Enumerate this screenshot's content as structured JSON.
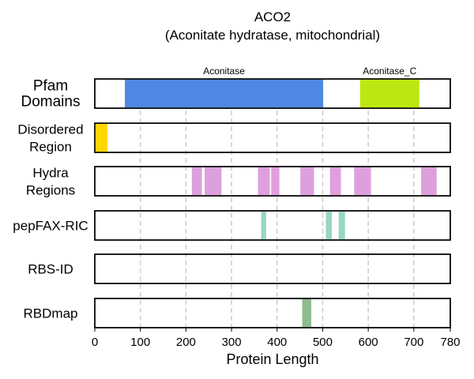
{
  "chart_data": {
    "type": "bar",
    "title": "ACO2",
    "subtitle": "(Aconitate hydratase, mitochondrial)",
    "xlabel": "Protein Length",
    "xlim": [
      0,
      780
    ],
    "xticks": [
      0,
      100,
      200,
      300,
      400,
      500,
      600,
      700,
      780
    ],
    "grid": "vertical dashed",
    "tracks": [
      {
        "label_lines": [
          "Pfam",
          "Domains"
        ],
        "segments": [
          {
            "start": 66,
            "end": 501,
            "color": "#4f88e3",
            "label": "Aconitase"
          },
          {
            "start": 582,
            "end": 712,
            "color": "#bde712",
            "label": "Aconitase_C"
          }
        ]
      },
      {
        "label_lines": [
          "Disordered",
          "Region"
        ],
        "segments": [
          {
            "start": 1,
            "end": 28,
            "color": "#ffd700"
          }
        ]
      },
      {
        "label_lines": [
          "Hydra",
          "Regions"
        ],
        "segments": [
          {
            "start": 213,
            "end": 235,
            "color": "#dda0dd"
          },
          {
            "start": 241,
            "end": 278,
            "color": "#dda0dd"
          },
          {
            "start": 358,
            "end": 384,
            "color": "#dda0dd"
          },
          {
            "start": 387,
            "end": 405,
            "color": "#dda0dd"
          },
          {
            "start": 451,
            "end": 481,
            "color": "#dda0dd"
          },
          {
            "start": 516,
            "end": 540,
            "color": "#dda0dd"
          },
          {
            "start": 569,
            "end": 606,
            "color": "#dda0dd"
          },
          {
            "start": 716,
            "end": 750,
            "color": "#dda0dd"
          }
        ]
      },
      {
        "label_lines": [
          "pepFAX-RIC"
        ],
        "segments": [
          {
            "start": 365,
            "end": 376,
            "color": "#98d7c2"
          },
          {
            "start": 507,
            "end": 520,
            "color": "#98d7c2"
          },
          {
            "start": 535,
            "end": 549,
            "color": "#98d7c2"
          }
        ]
      },
      {
        "label_lines": [
          "RBS-ID"
        ],
        "segments": []
      },
      {
        "label_lines": [
          "RBDmap"
        ],
        "segments": [
          {
            "start": 455,
            "end": 475,
            "color": "#8fbc8f"
          }
        ]
      }
    ]
  }
}
